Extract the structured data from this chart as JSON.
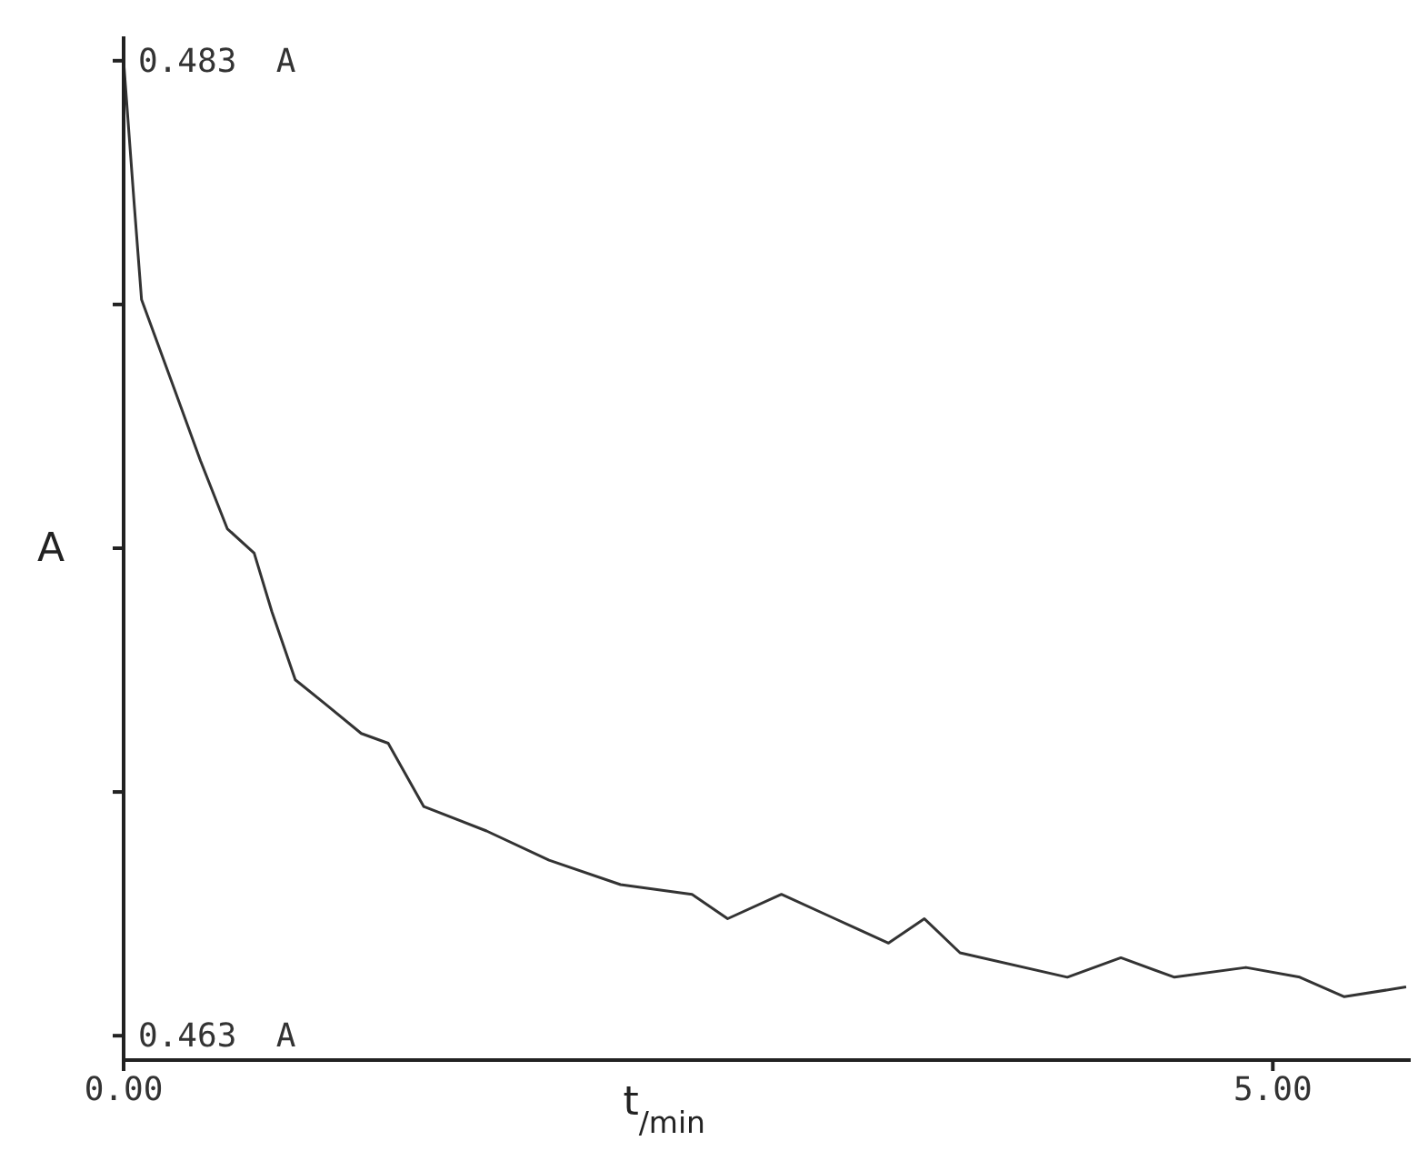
{
  "chart_data": {
    "type": "line",
    "xlabel": "t$_{/min}$",
    "ylabel": "A",
    "x": [
      0,
      0.047,
      0.078,
      0.218,
      0.334,
      0.451,
      0.568,
      0.645,
      0.747,
      0.879,
      1.034,
      1.151,
      1.306,
      1.579,
      1.851,
      2.162,
      2.473,
      2.628,
      2.862,
      3.095,
      3.328,
      3.484,
      3.639,
      4.106,
      4.339,
      4.572,
      4.883,
      5.117,
      5.311,
      5.58
    ],
    "series": [
      {
        "color": "#333333",
        "values": [
          0.483,
          0.48,
          0.4781,
          0.4763,
          0.4748,
          0.4734,
          0.4729,
          0.4717,
          0.4703,
          0.4698,
          0.4692,
          0.469,
          0.4677,
          0.4672,
          0.4666,
          0.4661,
          0.4659,
          0.4654,
          0.4659,
          0.4654,
          0.4649,
          0.4654,
          0.4647,
          0.4642,
          0.4646,
          0.4642,
          0.4644,
          0.4642,
          0.4638,
          0.464
        ]
      }
    ],
    "xlim": [
      0,
      5.6
    ],
    "ylim": [
      0.4625,
      0.4835
    ],
    "xticks": [
      {
        "value": 0,
        "label": "0.00"
      },
      {
        "value": 5,
        "label": "5.00"
      }
    ],
    "yticks": [
      {
        "value": 0.483,
        "label": "0.483  A"
      },
      {
        "value": 0.478,
        "label": null
      },
      {
        "value": 0.473,
        "label": null
      },
      {
        "value": 0.468,
        "label": null
      },
      {
        "value": 0.463,
        "label": "0.463  A"
      }
    ],
    "grid": false,
    "legend": false,
    "marker": "none",
    "line_style": "solid"
  }
}
